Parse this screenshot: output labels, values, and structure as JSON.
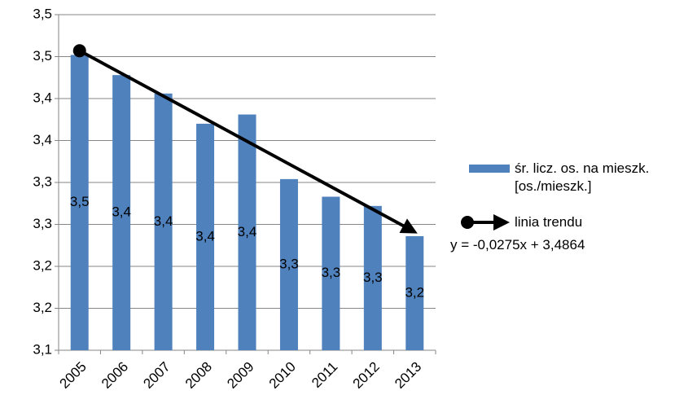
{
  "chart_data": {
    "type": "bar",
    "categories": [
      "2005",
      "2006",
      "2007",
      "2008",
      "2009",
      "2010",
      "2011",
      "2012",
      "2013"
    ],
    "series": [
      {
        "name": "śr. licz. os. na mieszk. [os./mieszk.]",
        "color": "#4f81bd",
        "values": [
          3.452,
          3.428,
          3.406,
          3.37,
          3.381,
          3.304,
          3.283,
          3.272,
          3.236
        ],
        "value_labels": [
          "3,5",
          "3,4",
          "3,4",
          "3,4",
          "3,4",
          "3,3",
          "3,3",
          "3,3",
          "3,2"
        ]
      }
    ],
    "trend": {
      "name": "linia trendu",
      "equation": "y = -0,0275x + 3,4864",
      "color": "#000000",
      "values": [
        3.457,
        3.241
      ]
    },
    "ylim": [
      3.1,
      3.5
    ],
    "yticks": [
      {
        "value": 3.1,
        "label": "3,1"
      },
      {
        "value": 3.15,
        "label": "3,2"
      },
      {
        "value": 3.2,
        "label": "3,2"
      },
      {
        "value": 3.25,
        "label": "3,3"
      },
      {
        "value": 3.3,
        "label": "3,3"
      },
      {
        "value": 3.35,
        "label": "3,4"
      },
      {
        "value": 3.4,
        "label": "3,4"
      },
      {
        "value": 3.45,
        "label": "3,5"
      },
      {
        "value": 3.5,
        "label": "3,5"
      }
    ],
    "grid": true
  }
}
